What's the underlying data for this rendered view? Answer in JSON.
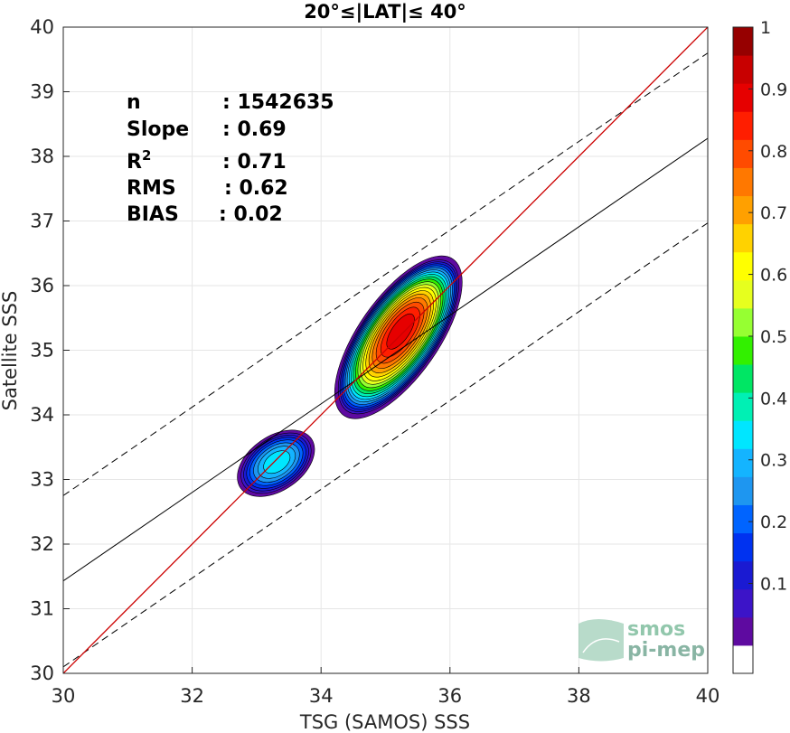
{
  "chart_data": {
    "type": "contour",
    "title": "20°≤|LAT|≤ 40°",
    "xlabel": "TSG (SAMOS) SSS",
    "ylabel": "Satellite SSS",
    "xlim": [
      30,
      40
    ],
    "ylim": [
      30,
      40
    ],
    "xticks": [
      "30",
      "32",
      "34",
      "36",
      "38",
      "40"
    ],
    "yticks": [
      "30",
      "31",
      "32",
      "33",
      "34",
      "35",
      "36",
      "37",
      "38",
      "39",
      "40"
    ],
    "grid": true,
    "stats": [
      {
        "label": "n",
        "value": ": 1542635"
      },
      {
        "label": "Slope",
        "value": ": 0.69"
      },
      {
        "label": "R",
        "sup": "2",
        "value": ": 0.71"
      },
      {
        "label": "RMS",
        "value": ": 0.62"
      },
      {
        "label": "BIAS",
        "value": ": 0.02"
      }
    ],
    "lines": {
      "identity": {
        "x": [
          30,
          40
        ],
        "y": [
          30,
          40
        ],
        "color": "#cc0000"
      },
      "fit": {
        "x": [
          30,
          40
        ],
        "y": [
          31.43,
          38.28
        ],
        "color": "#000000"
      },
      "upper_bound": {
        "x": [
          30,
          40
        ],
        "y": [
          32.75,
          39.6
        ],
        "dash": true
      },
      "lower_bound": {
        "x": [
          30,
          40
        ],
        "y": [
          30.1,
          36.97
        ],
        "dash": true
      }
    },
    "density_clusters": [
      {
        "center": [
          35.2,
          35.2
        ],
        "peak": 0.9,
        "angle_deg": 55,
        "outer": {
          "rx": 1.48,
          "ry": 0.62
        }
      },
      {
        "center": [
          33.3,
          33.25
        ],
        "peak": 0.35,
        "angle_deg": 35,
        "outer": {
          "rx": 0.67,
          "ry": 0.42
        }
      }
    ],
    "colorbar": {
      "ticks": [
        "0.1",
        "0.2",
        "0.3",
        "0.4",
        "0.5",
        "0.6",
        "0.7",
        "0.8",
        "0.9",
        "1"
      ],
      "colors": [
        "#ffffff",
        "#5e0aa0",
        "#3c14c8",
        "#1a1ad2",
        "#0032f0",
        "#0064ff",
        "#1e96f0",
        "#14b4ff",
        "#00e6ff",
        "#00f0b4",
        "#00e664",
        "#32f000",
        "#96ff32",
        "#e6ff1e",
        "#ffff00",
        "#ffd200",
        "#ffa000",
        "#ff7800",
        "#ff4b00",
        "#ff1e00",
        "#e60000",
        "#c80000",
        "#960000"
      ]
    }
  },
  "watermark": {
    "line1": "smos",
    "line2": "pi-mep"
  }
}
